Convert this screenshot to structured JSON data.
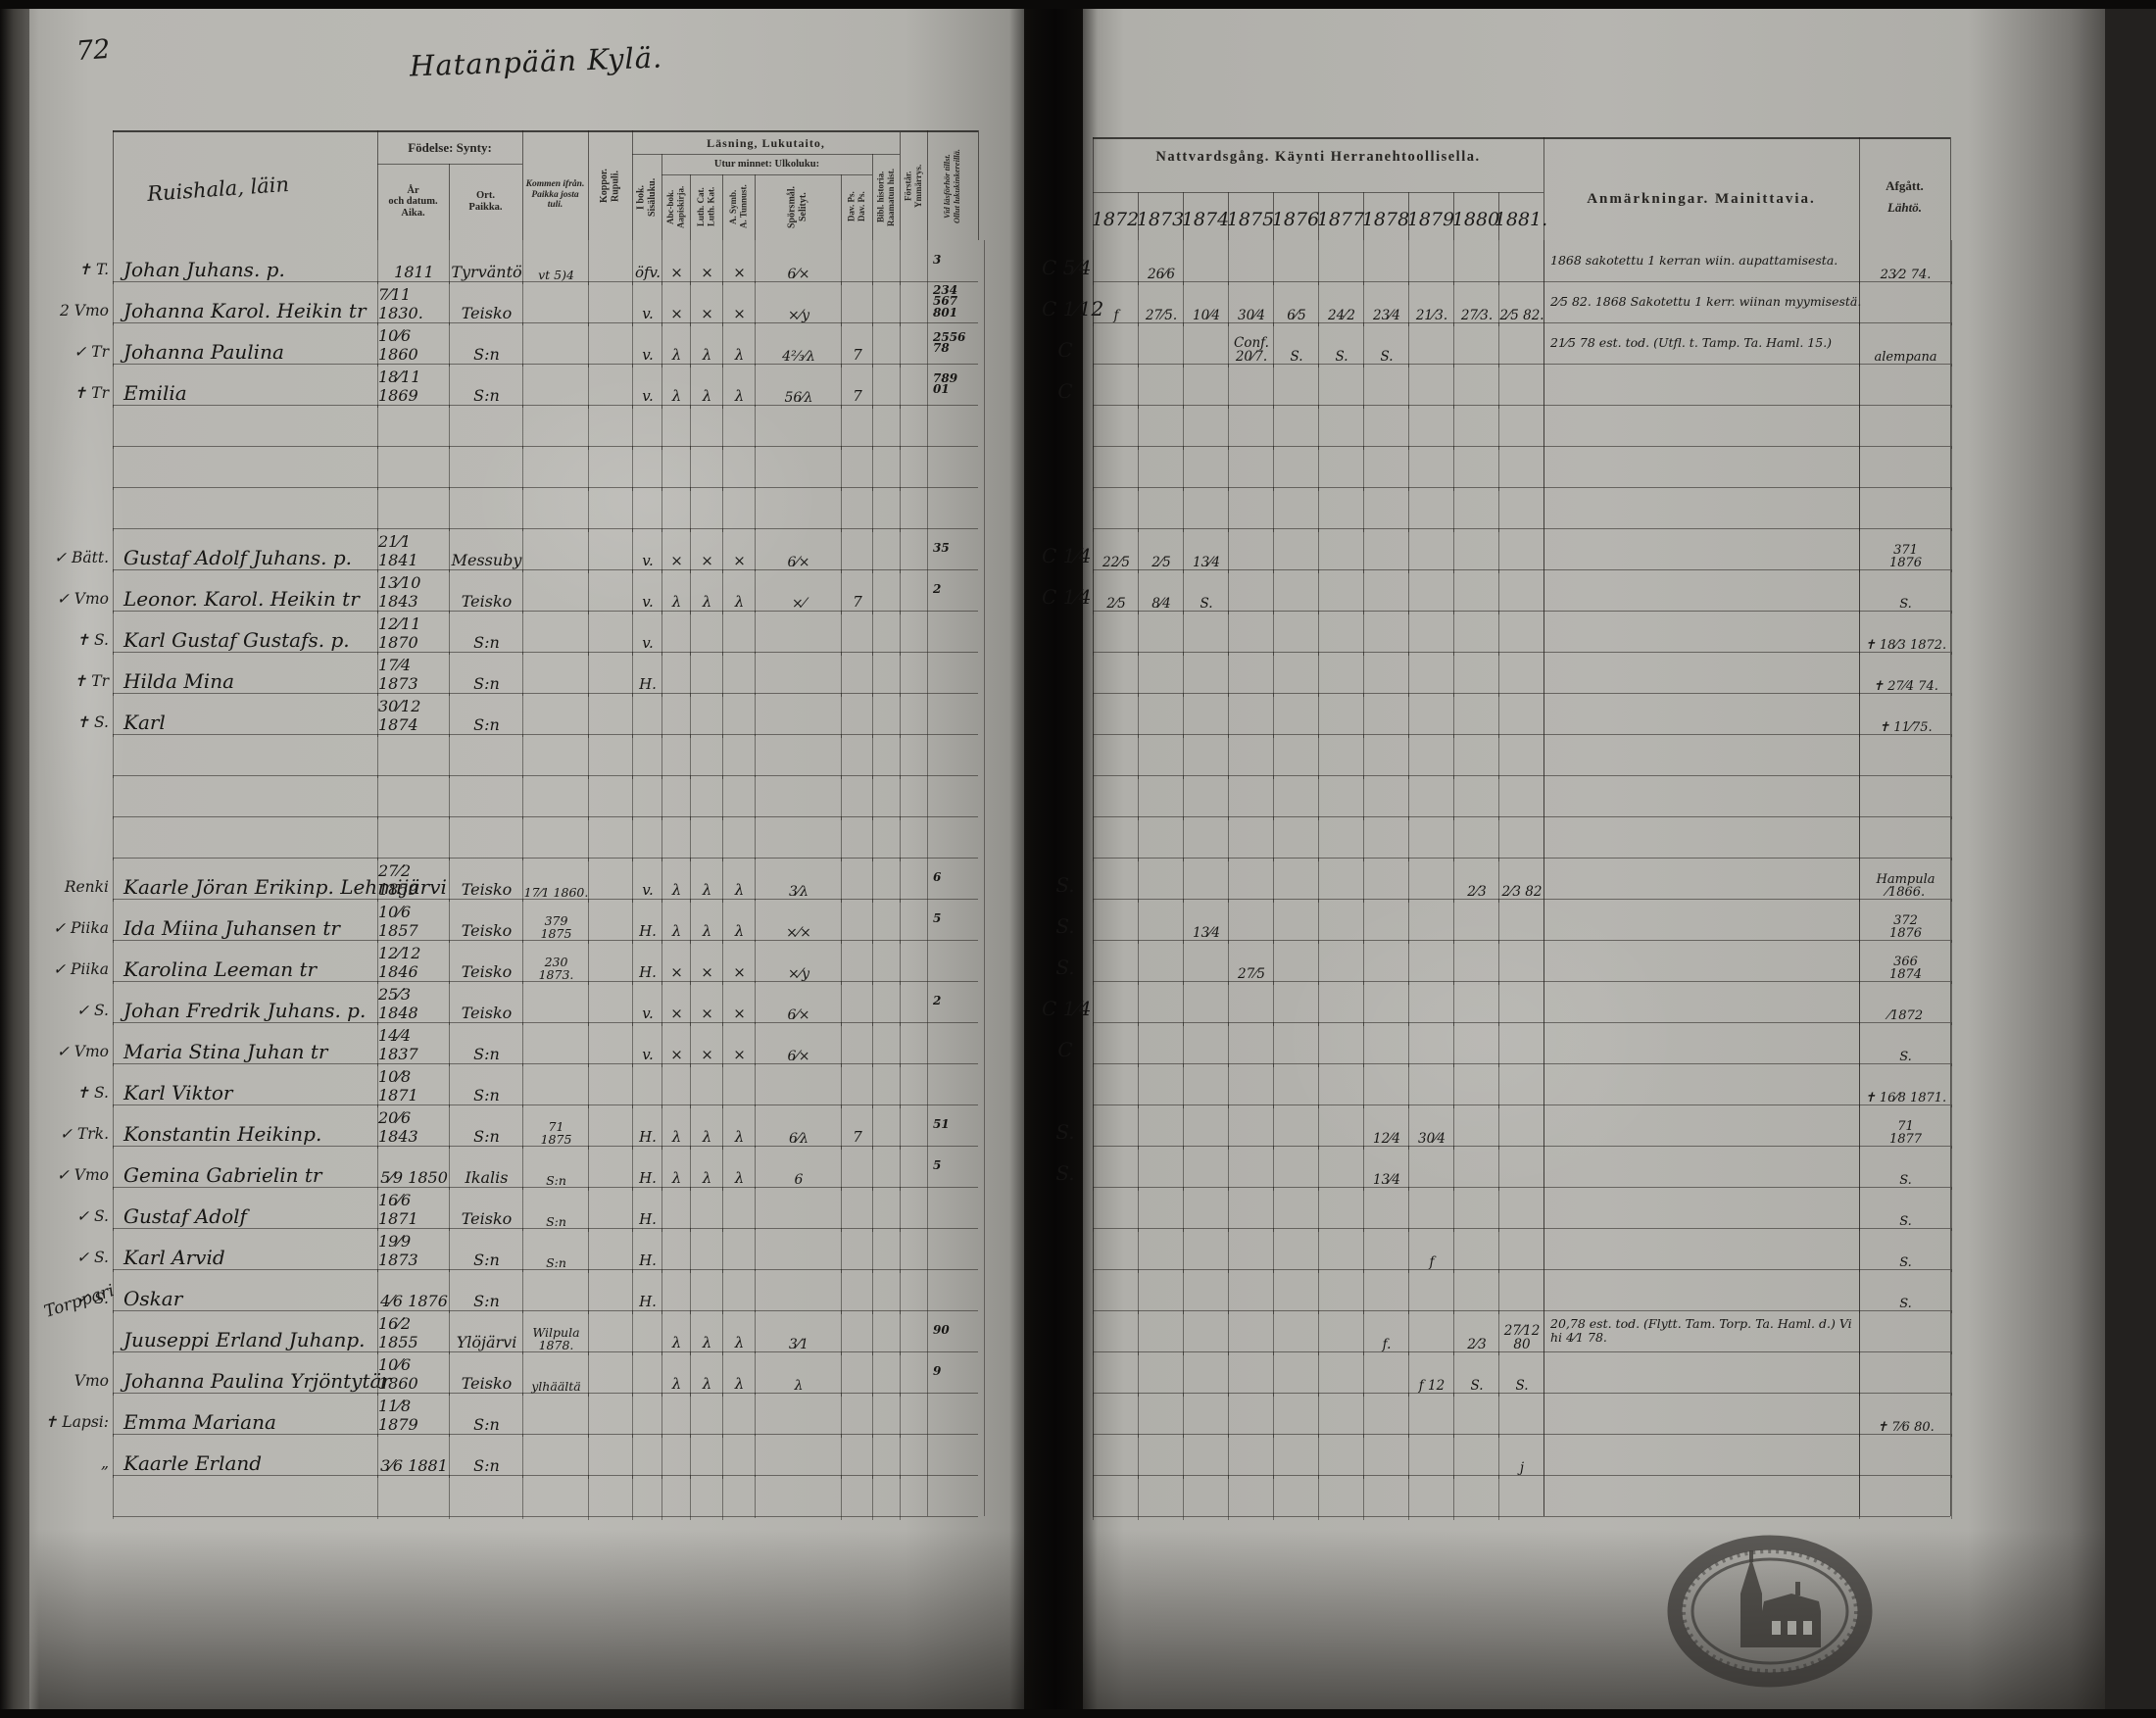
{
  "page": {
    "number": "72",
    "village_title": "Hatanpään Kylä.",
    "farm_label": "Ruishala, läin",
    "margin_note": "Torppari"
  },
  "left_headers": {
    "fodelse": "Födelse:  Synty:",
    "ar": "År\noch datum.\nAika.",
    "ort": "Ort.\nPaikka.",
    "kommen": "Kommen ifrån.\nPaikka josta\ntuli.",
    "koppor": "Koppor.\nRupuli.",
    "lasning": "Läsning,  Lukutaito,",
    "ibok": "I bok.\nSisäluku.",
    "utur": "Utur minnet:  Ulkoluku:",
    "abc": "Abc-bok.\nAapiskirja.",
    "luth": "Luth. Cat.\nLuth. Kat.",
    "asymb": "A. Symb.\nA. Tunnust.",
    "spors": "Spörsmål.\nSelityt.",
    "davps": "Dav. Ps.\nDav. Ps.",
    "bibl": "Bibl. historia.\nRaamatun hist.",
    "forstar": "Förstår.\nYmmärrys.",
    "vidlas": "Vid läsförhör tillst.\nOllut lukukinkereillä."
  },
  "right_headers": {
    "natt": "Nattvardsgång.   Käynti Herranehtoollisella.",
    "years": [
      "1872",
      "1873",
      "1874",
      "1875",
      "1876",
      "1877",
      "1878",
      "1879",
      "1880",
      "1881."
    ],
    "anm": "Anmärkningar.   Mainittavia.",
    "afgatt": "Afgått.",
    "lahto": "Lähtö."
  },
  "rows": [
    {
      "m": "✝ T.",
      "name": "Johan Juhans. p.",
      "date": "1811",
      "ort": "Tyrväntö",
      "from": "vt 5)4",
      "rd": [
        "",
        "öfv.",
        "×",
        "×",
        "×",
        "6⁄×",
        "",
        "",
        ""
      ],
      "pg": "3",
      "cm": "C 5⁄4",
      "comm": [
        "",
        "26⁄6",
        "",
        "",
        "",
        "",
        "",
        "",
        "",
        ""
      ],
      "anm": "1868 sakotettu 1 kerran wiin. aupattamisesta.",
      "af": "23⁄2 74."
    },
    {
      "m": "2 Vmo",
      "name": "Johanna Karol. Heikin tr",
      "date": "7⁄11 1830.",
      "ort": "Teisko",
      "rd": [
        "",
        "v.",
        "×",
        "×",
        "×",
        "×⁄y",
        "",
        "",
        ""
      ],
      "pg": "234\n567\n801",
      "cm": "C 1⁄12",
      "comm": [
        "f",
        "27⁄5.",
        "10⁄4",
        "30⁄4",
        "6⁄5",
        "24⁄2",
        "23⁄4",
        "21⁄3.",
        "27⁄3.",
        "2⁄5 82."
      ],
      "anm": "2⁄5 82. 1868 Sakotettu 1 kerr. wiinan myymisestä.",
      "af": ""
    },
    {
      "m": "✓ Tr",
      "name": "Johanna Paulina",
      "date": "10⁄6 1860",
      "ort": "S:n",
      "rd": [
        "",
        "v.",
        "λ",
        "λ",
        "λ",
        "4⅔⁄λ",
        "7",
        "",
        ""
      ],
      "pg": "2556\n78",
      "cm": "C",
      "comm": [
        "",
        "",
        "",
        "Conf. 20⁄7.",
        "S.",
        "S.",
        "S.",
        "",
        "",
        ""
      ],
      "anm": "21⁄5 78 est. tod. (Utfl. t. Tamp. Ta. Haml. 15.)",
      "af": "alempana"
    },
    {
      "m": "✝ Tr",
      "name": "Emilia",
      "date": "18⁄11 1869",
      "ort": "S:n",
      "rd": [
        "",
        "v.",
        "λ",
        "λ",
        "λ",
        "56⁄λ",
        "7",
        "",
        ""
      ],
      "pg": "789\n01",
      "cm": "C",
      "af": ""
    },
    {},
    {},
    {},
    {
      "m": "✓ Bätt.",
      "name": "Gustaf Adolf Juhans. p.",
      "date": "21⁄1 1841",
      "ort": "Messuby",
      "rd": [
        "",
        "v.",
        "×",
        "×",
        "×",
        "6⁄×",
        "",
        "",
        ""
      ],
      "pg": "35",
      "cm": "C 1⁄4",
      "comm": [
        "22⁄5",
        "2⁄5",
        "13⁄4",
        "",
        "",
        "",
        "",
        "",
        "",
        ""
      ],
      "af": "371\n1876"
    },
    {
      "m": "✓ Vmo",
      "name": "Leonor. Karol. Heikin tr",
      "date": "13⁄10 1843",
      "ort": "Teisko",
      "rd": [
        "",
        "v.",
        "λ",
        "λ",
        "λ",
        "×⁄",
        "7",
        "",
        ""
      ],
      "pg": "2",
      "cm": "C 1⁄4",
      "comm": [
        "2⁄5",
        "8⁄4",
        "S.",
        "",
        "",
        "",
        "",
        "",
        "",
        ""
      ],
      "af": "S."
    },
    {
      "m": "✝ S.",
      "name": "Karl Gustaf Gustafs. p.",
      "date": "12⁄11 1870",
      "ort": "S:n",
      "rd": [
        "",
        "v.",
        "",
        "",
        "",
        "",
        "",
        "",
        ""
      ],
      "af": "✝ 18⁄3 1872."
    },
    {
      "m": "✝ Tr",
      "name": "Hilda Mina",
      "date": "17⁄4 1873",
      "ort": "S:n",
      "rd": [
        "",
        "H.",
        "",
        "",
        "",
        "",
        "",
        "",
        ""
      ],
      "af": "✝ 27⁄4 74."
    },
    {
      "m": "✝ S.",
      "name": "Karl",
      "date": "30⁄12 1874",
      "ort": "S:n",
      "af": "✝ 11⁄75."
    },
    {},
    {},
    {},
    {
      "m": "Renki",
      "name": "Kaarle Jöran Erikinp. Lehmijärvi",
      "date": "27⁄2 1859",
      "ort": "Teisko",
      "from": "17⁄1 1860.",
      "rd": [
        "",
        "v.",
        "λ",
        "λ",
        "λ",
        "3⁄λ",
        "",
        "",
        ""
      ],
      "pg": "6",
      "cm": "S.",
      "comm": [
        "",
        "",
        "",
        "",
        "",
        "",
        "",
        "",
        "2⁄3",
        "2⁄3 82"
      ],
      "af": "Hampula\n⁄1866."
    },
    {
      "m": "✓ Piika",
      "name": "Ida Miina Juhansen tr",
      "date": "10⁄6 1857",
      "ort": "Teisko",
      "from": "379\n1875",
      "rd": [
        "",
        "H.",
        "λ",
        "λ",
        "λ",
        "×⁄×",
        "",
        "",
        ""
      ],
      "pg": "5",
      "cm": "S.",
      "comm": [
        "",
        "",
        "13⁄4",
        "",
        "",
        "",
        "",
        "",
        "",
        ""
      ],
      "af": "372\n1876"
    },
    {
      "m": "✓ Piika",
      "name": "Karolina Leeman tr",
      "date": "12⁄12 1846",
      "ort": "Teisko",
      "from": "230\n1873.",
      "rd": [
        "",
        "H.",
        "×",
        "×",
        "×",
        "×⁄y",
        "",
        "",
        ""
      ],
      "cm": "S.",
      "comm": [
        "",
        "",
        "",
        "27⁄5",
        "",
        "",
        "",
        "",
        "",
        ""
      ],
      "af": "366\n1874"
    },
    {
      "m": "✓ S.",
      "name": "Johan Fredrik Juhans. p.",
      "date": "25⁄3 1848",
      "ort": "Teisko",
      "rd": [
        "",
        "v.",
        "×",
        "×",
        "×",
        "6⁄×",
        "",
        "",
        ""
      ],
      "pg": "2",
      "cm": "C 1⁄4",
      "af": "⁄1872"
    },
    {
      "m": "✓ Vmo",
      "name": "Maria Stina Juhan tr",
      "date": "14⁄4 1837",
      "ort": "S:n",
      "rd": [
        "",
        "v.",
        "×",
        "×",
        "×",
        "6⁄×",
        "",
        "",
        ""
      ],
      "cm": "C",
      "af": "S."
    },
    {
      "m": "✝ S.",
      "name": "Karl Viktor",
      "date": "10⁄8 1871",
      "ort": "S:n",
      "af": "✝ 16⁄8 1871."
    },
    {
      "m": "✓ Trk.",
      "name": "Konstantin Heikinp.",
      "date": "20⁄6 1843",
      "ort": "S:n",
      "from": "71\n1875",
      "rd": [
        "",
        "H.",
        "λ",
        "λ",
        "λ",
        "6⁄λ",
        "7",
        "",
        ""
      ],
      "pg": "51",
      "cm": "S.",
      "comm": [
        "",
        "",
        "",
        "",
        "",
        "",
        "12⁄4",
        "30⁄4",
        "",
        ""
      ],
      "af": "71\n1877"
    },
    {
      "m": "✓ Vmo",
      "name": "Gemina Gabrielin tr",
      "date": "5⁄9 1850",
      "ort": "Ikalis",
      "from": "S:n",
      "rd": [
        "",
        "H.",
        "λ",
        "λ",
        "λ",
        "6",
        "",
        "",
        ""
      ],
      "pg": "5",
      "cm": "S.",
      "comm": [
        "",
        "",
        "",
        "",
        "",
        "",
        "13⁄4",
        "",
        "",
        ""
      ],
      "af": "S."
    },
    {
      "m": "✓ S.",
      "name": "Gustaf Adolf",
      "date": "16⁄6 1871",
      "ort": "Teisko",
      "from": "S:n",
      "rd": [
        "",
        "H.",
        "",
        "",
        "",
        "",
        "",
        "",
        ""
      ],
      "af": "S."
    },
    {
      "m": "✓ S.",
      "name": "Karl Arvid",
      "date": "19⁄9 1873",
      "ort": "S:n",
      "from": "S:n",
      "rd": [
        "",
        "H.",
        "",
        "",
        "",
        "",
        "",
        "",
        ""
      ],
      "comm": [
        "",
        "",
        "",
        "",
        "",
        "",
        "",
        "f",
        "",
        ""
      ],
      "af": "S."
    },
    {
      "m": "✓ S.",
      "name": "Oskar",
      "date": "4⁄6 1876",
      "ort": "S:n",
      "rd": [
        "",
        "H.",
        "",
        "",
        "",
        "",
        "",
        "",
        ""
      ],
      "af": "S."
    },
    {
      "m": "",
      "name": "Juuseppi Erland Juhanp.",
      "date": "16⁄2 1855",
      "ort": "Ylöjärvi",
      "from": "Wilpula\n1878.",
      "rd": [
        "",
        "",
        "λ",
        "λ",
        "λ",
        "3⁄1",
        "",
        "",
        ""
      ],
      "pg": "90",
      "comm": [
        "",
        "",
        "",
        "",
        "",
        "",
        "f.",
        "",
        "2⁄3",
        "27⁄12 80"
      ],
      "anm": "20,78 est. tod. (Flytt. Tam. Torp. Ta. Haml. d.)  Vi hi 4⁄1 78.",
      "af": ""
    },
    {
      "m": "Vmo",
      "name": "Johanna Paulina Yrjöntytär",
      "date": "10⁄6 1860",
      "ort": "Teisko",
      "from": "ylhäältä",
      "rd": [
        "",
        "",
        "λ",
        "λ",
        "λ",
        "λ",
        "",
        "",
        ""
      ],
      "pg": "9",
      "comm": [
        "",
        "",
        "",
        "",
        "",
        "",
        "",
        "f 12",
        "S.",
        "S."
      ],
      "af": ""
    },
    {
      "m": "✝ Lapsi:",
      "name": "Emma Mariana",
      "date": "11⁄8 1879",
      "ort": "S:n",
      "af": "✝ 7⁄6 80."
    },
    {
      "m": "„",
      "name": "Kaarle Erland",
      "date": "3⁄6 1881",
      "ort": "S:n",
      "comm": [
        "",
        "",
        "",
        "",
        "",
        "",
        "",
        "",
        "",
        "j"
      ],
      "af": ""
    },
    {}
  ]
}
